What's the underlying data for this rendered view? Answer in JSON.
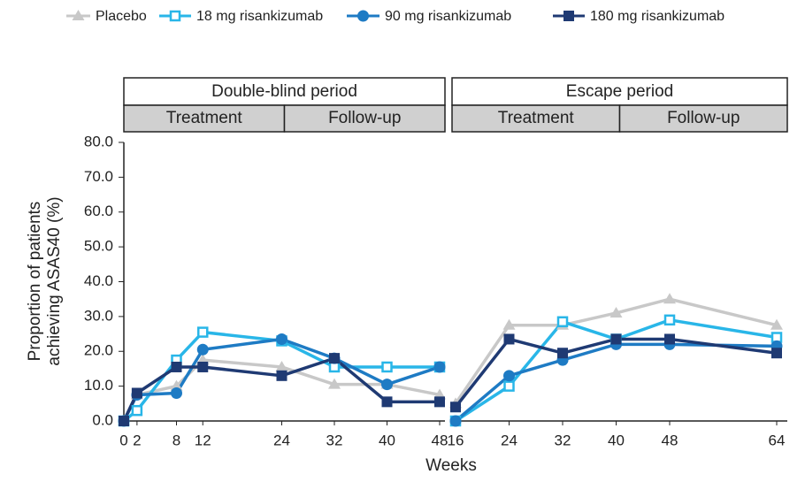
{
  "chart_data": [
    {
      "type": "line",
      "title": "Double-blind period",
      "phases": [
        "Treatment",
        "Follow-up"
      ],
      "ylabel": [
        "Proportion of patients",
        "achieving ASAS40 (%)"
      ],
      "xlabel": "Weeks",
      "x": [
        0,
        2,
        8,
        12,
        24,
        32,
        40,
        48
      ],
      "xlim": [
        0,
        48
      ],
      "xticks": [
        0,
        2,
        8,
        12,
        24,
        32,
        40,
        48
      ],
      "ylim": [
        0,
        80
      ],
      "yticks": [
        {
          "value": 0,
          "label": "0.0"
        },
        {
          "value": 10,
          "label": "10.0"
        },
        {
          "value": 20,
          "label": "20.0"
        },
        {
          "value": 30,
          "label": "30.0"
        },
        {
          "value": 40,
          "label": "40.0"
        },
        {
          "value": 50,
          "label": "50.0"
        },
        {
          "value": 60,
          "label": "60.0"
        },
        {
          "value": 70,
          "label": "70.0"
        },
        {
          "value": 80,
          "label": "80.0"
        }
      ],
      "series": [
        {
          "name": "Placebo",
          "color": "#c8c8c8",
          "marker": "triangle",
          "values": [
            0,
            7.5,
            10,
            17.5,
            15.5,
            10.5,
            10.5,
            7.5
          ]
        },
        {
          "name": "18 mg risankizumab",
          "color": "#29b6e8",
          "marker": "open-square",
          "values": [
            0,
            3,
            17.5,
            25.5,
            23,
            15.5,
            15.5,
            15.5
          ]
        },
        {
          "name": "90 mg risankizumab",
          "color": "#1e7bc4",
          "marker": "circle",
          "values": [
            0,
            7.5,
            8,
            20.5,
            23.5,
            18,
            10.5,
            15.5
          ]
        },
        {
          "name": "180 mg risankizumab",
          "color": "#1f3a73",
          "marker": "square",
          "values": [
            0,
            8,
            15.5,
            15.5,
            13,
            18,
            5.5,
            5.5
          ]
        }
      ]
    },
    {
      "type": "line",
      "title": "Escape period",
      "phases": [
        "Treatment",
        "Follow-up"
      ],
      "x": [
        16,
        24,
        32,
        40,
        48,
        64
      ],
      "xlim": [
        16,
        64
      ],
      "xticks": [
        16,
        24,
        32,
        40,
        48,
        64
      ],
      "ylim": [
        0,
        80
      ],
      "series": [
        {
          "color": "#c8c8c8",
          "marker": "triangle",
          "values": [
            5,
            27.5,
            27.5,
            31,
            35,
            27.5
          ]
        },
        {
          "color": "#29b6e8",
          "marker": "open-square",
          "values": [
            0,
            10,
            28.5,
            23.5,
            29,
            24
          ]
        },
        {
          "color": "#1e7bc4",
          "marker": "circle",
          "values": [
            0,
            13,
            17.5,
            22,
            22,
            21.5
          ]
        },
        {
          "color": "#1f3a73",
          "marker": "square",
          "values": [
            4,
            23.5,
            19.5,
            23.5,
            23.5,
            19.5
          ]
        }
      ]
    }
  ]
}
